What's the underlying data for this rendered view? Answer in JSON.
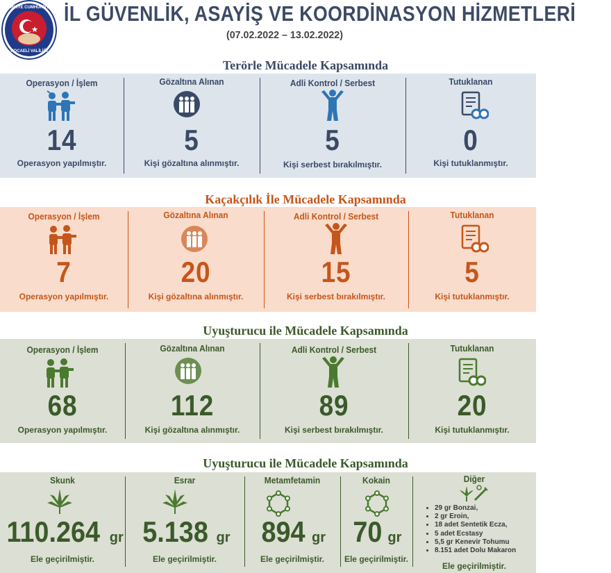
{
  "header": {
    "title": "İL GÜVENLİK, ASAYİŞ VE KOORDİNASYON HİZMETLERİ",
    "date_range": "(07.02.2022 – 13.02.2022)",
    "logo_top_text": "TÜRKİYE CUMHURİYETİ",
    "logo_bottom_text": "KOCAELİ VALİLİĞİ"
  },
  "colors": {
    "blue_text": "#3a4a66",
    "blue_icon": "#2e75b6",
    "blue_bg": "#dde4ec",
    "orange_text": "#c5561b",
    "orange_bg": "#f9dccb",
    "green_text": "#3b5a2a",
    "green_icon": "#4a7a2f",
    "green_bg": "#dcdfd4"
  },
  "sections": [
    {
      "title": "Terörle Mücadele Kapsamında",
      "cells": [
        {
          "header": "Operasyon / İşlem",
          "value": "14",
          "desc": "Operasyon yapılmıştır.",
          "icon": "arrest-icon"
        },
        {
          "header": "Gözaltına Alınan",
          "value": "5",
          "desc": "Kişi gözaltına alınmıştır.",
          "icon": "detained-group-icon"
        },
        {
          "header": "Adli Kontrol / Serbest",
          "value": "5",
          "desc": "Kişi serbest bırakılmıştır.",
          "icon": "released-person-icon"
        },
        {
          "header": "Tutuklanan",
          "value": "0",
          "desc": "Kişi tutuklanmıştır.",
          "icon": "document-handcuffs-icon"
        }
      ]
    },
    {
      "title": "Kaçakçılık İle Mücadele Kapsamında",
      "cells": [
        {
          "header": "Operasyon / İşlem",
          "value": "7",
          "desc": "Operasyon yapılmıştır.",
          "icon": "arrest-icon"
        },
        {
          "header": "Gözaltına Alınan",
          "value": "20",
          "desc": "Kişi gözaltına alınmıştır.",
          "icon": "detained-group-icon"
        },
        {
          "header": "Adli Kontrol / Serbest",
          "value": "15",
          "desc": "Kişi serbest bırakılmıştır.",
          "icon": "released-person-icon"
        },
        {
          "header": "Tutuklanan",
          "value": "5",
          "desc": "Kişi tutuklanmıştır.",
          "icon": "document-handcuffs-icon"
        }
      ]
    },
    {
      "title": "Uyuşturucu ile Mücadele Kapsamında",
      "cells": [
        {
          "header": "Operasyon / İşlem",
          "value": "68",
          "desc": "Operasyon yapılmıştır.",
          "icon": "arrest-icon"
        },
        {
          "header": "Gözaltına Alınan",
          "value": "112",
          "desc": "Kişi gözaltına alınmıştır.",
          "icon": "detained-group-icon"
        },
        {
          "header": "Adli Kontrol / Serbest",
          "value": "89",
          "desc": "Kişi serbest bırakılmıştır.",
          "icon": "released-person-icon"
        },
        {
          "header": "Tutuklanan",
          "value": "20",
          "desc": "Kişi tutuklanmıştır.",
          "icon": "document-handcuffs-icon"
        }
      ]
    }
  ],
  "seizures": {
    "title": "Uyuşturucu ile  Mücadele Kapsamında",
    "unit": "gr",
    "desc": "Ele geçirilmiştir.",
    "items": [
      {
        "header": "Skunk",
        "value": "110.264",
        "icon": "cannabis-leaf-icon"
      },
      {
        "header": "Esrar",
        "value": "5.138",
        "icon": "cannabis-leaf-icon"
      },
      {
        "header": "Metamfetamin",
        "value": "894",
        "icon": "molecule-icon"
      },
      {
        "header": "Kokain",
        "value": "70",
        "icon": "molecule-icon"
      }
    ],
    "other": {
      "header": "Diğer",
      "icon": "drugs-syringe-icon",
      "items": [
        "29 gr Bonzai,",
        "2 gr Eroin,",
        "18 adet Sentetik Ecza,",
        "5 adet Ecstasy",
        "5,5 gr Kenevir Tohumu",
        "8.151 adet Dolu Makaron"
      ],
      "footer": "Ele geçirilmiştir."
    }
  }
}
